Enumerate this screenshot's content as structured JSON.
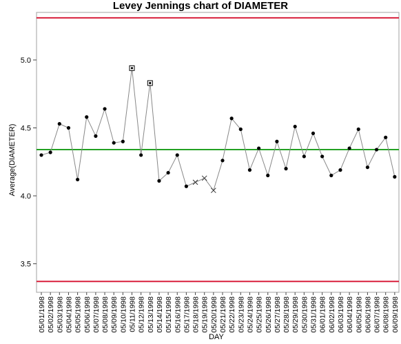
{
  "chart_data": {
    "type": "line",
    "title": "Levey Jennings chart of DIAMETER",
    "xlabel": "DAY",
    "ylabel": "Average(DIAMETER)",
    "categories": [
      "05/01/1998",
      "05/02/1998",
      "05/03/1998",
      "05/04/1998",
      "05/05/1998",
      "05/06/1998",
      "05/07/1998",
      "05/08/1998",
      "05/09/1998",
      "05/10/1998",
      "05/11/1998",
      "05/12/1998",
      "05/13/1998",
      "05/14/1998",
      "05/15/1998",
      "05/16/1998",
      "05/17/1998",
      "05/18/1998",
      "05/19/1998",
      "05/20/1998",
      "05/21/1998",
      "05/22/1998",
      "05/23/1998",
      "05/24/1998",
      "05/25/1998",
      "05/26/1998",
      "05/27/1998",
      "05/28/1998",
      "05/29/1998",
      "05/30/1998",
      "05/31/1998",
      "06/01/1998",
      "06/02/1998",
      "06/03/1998",
      "06/04/1998",
      "06/05/1998",
      "06/06/1998",
      "06/07/1998",
      "06/08/1998",
      "06/09/1998"
    ],
    "values": [
      4.3,
      4.32,
      4.53,
      4.5,
      4.12,
      4.58,
      4.44,
      4.64,
      4.39,
      4.4,
      4.94,
      4.3,
      4.83,
      4.11,
      4.17,
      4.3,
      4.07,
      4.1,
      4.13,
      4.04,
      4.26,
      4.57,
      4.49,
      4.19,
      4.35,
      4.15,
      4.4,
      4.2,
      4.51,
      4.29,
      4.46,
      4.29,
      4.15,
      4.19,
      4.35,
      4.49,
      4.21,
      4.34,
      4.43,
      4.14
    ],
    "markers": [
      "dot",
      "dot",
      "dot",
      "dot",
      "dot",
      "dot",
      "dot",
      "dot",
      "dot",
      "dot",
      "square",
      "dot",
      "square",
      "dot",
      "dot",
      "dot",
      "dot",
      "x",
      "x",
      "x",
      "dot",
      "dot",
      "dot",
      "dot",
      "dot",
      "dot",
      "dot",
      "dot",
      "dot",
      "dot",
      "dot",
      "dot",
      "dot",
      "dot",
      "dot",
      "dot",
      "dot",
      "dot",
      "dot",
      "dot"
    ],
    "center_line": 4.34,
    "ucl": 5.31,
    "lcl": 3.37,
    "ylim": [
      3.29,
      5.35
    ],
    "yticks": [
      3.5,
      4.0,
      4.5,
      5.0
    ],
    "ytick_labels": [
      "3.5",
      "4.0",
      "4.5",
      "5.0"
    ],
    "grid": false,
    "colors": {
      "series": "#888888",
      "points": "#000000",
      "center": "#22a022",
      "limits": "#d81e3a"
    }
  }
}
